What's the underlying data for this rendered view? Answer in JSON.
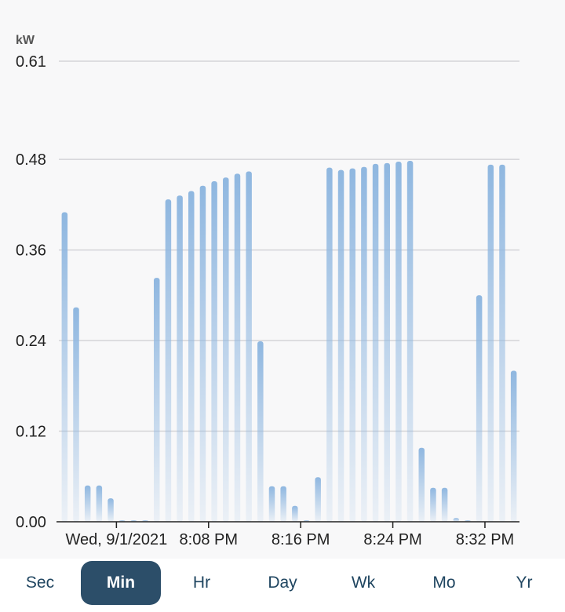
{
  "chart_data": {
    "type": "bar",
    "unit_label": "kW",
    "ylim": [
      0,
      0.61
    ],
    "y_ticks": [
      "0.00",
      "0.12",
      "0.24",
      "0.36",
      "0.48",
      "0.61"
    ],
    "y_tick_values": [
      0,
      0.12,
      0.24,
      0.36,
      0.48,
      0.61
    ],
    "x_tick_labels": [
      "Wed, 9/1/2021",
      "8:08 PM",
      "8:16 PM",
      "8:24 PM",
      "8:32 PM"
    ],
    "x_tick_indices": [
      4.5,
      12.5,
      20.5,
      28.5,
      36.5
    ],
    "grid": true,
    "bar_color": "#8fb7e0",
    "values": [
      0.41,
      0.284,
      0.048,
      0.048,
      0.031,
      0.002,
      0.002,
      0.002,
      0.323,
      0.427,
      0.432,
      0.438,
      0.445,
      0.451,
      0.456,
      0.461,
      0.464,
      0.239,
      0.047,
      0.047,
      0.021,
      0.002,
      0.059,
      0.469,
      0.466,
      0.468,
      0.47,
      0.474,
      0.475,
      0.477,
      0.478,
      0.098,
      0.045,
      0.045,
      0.005,
      0.002,
      0.3,
      0.473,
      0.473,
      0.2
    ]
  },
  "tabs": [
    "Sec",
    "Min",
    "Hr",
    "Day",
    "Wk",
    "Mo",
    "Yr"
  ],
  "active_tab": "Min"
}
